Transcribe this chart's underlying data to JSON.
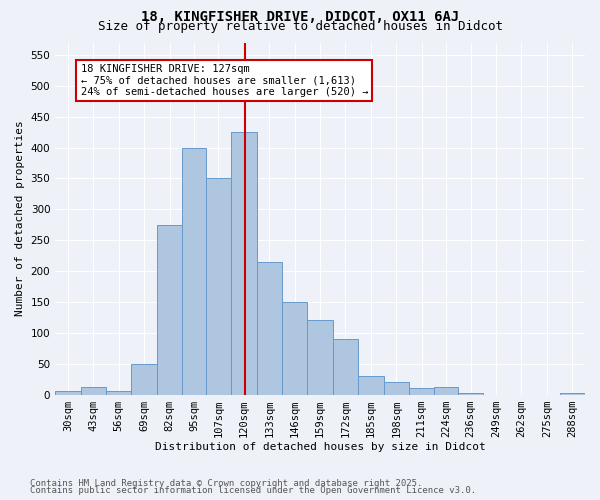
{
  "title1": "18, KINGFISHER DRIVE, DIDCOT, OX11 6AJ",
  "title2": "Size of property relative to detached houses in Didcot",
  "xlabel": "Distribution of detached houses by size in Didcot",
  "ylabel": "Number of detached properties",
  "bin_labels": [
    "30sqm",
    "43sqm",
    "56sqm",
    "69sqm",
    "82sqm",
    "95sqm",
    "107sqm",
    "120sqm",
    "133sqm",
    "146sqm",
    "159sqm",
    "172sqm",
    "185sqm",
    "198sqm",
    "211sqm",
    "224sqm",
    "236sqm",
    "249sqm",
    "262sqm",
    "275sqm",
    "288sqm"
  ],
  "bin_edges": [
    30,
    43,
    56,
    69,
    82,
    95,
    107,
    120,
    133,
    146,
    159,
    172,
    185,
    198,
    211,
    224,
    236,
    249,
    262,
    275,
    288,
    301
  ],
  "bar_heights": [
    5,
    13,
    5,
    50,
    275,
    400,
    350,
    425,
    215,
    150,
    120,
    90,
    30,
    20,
    10,
    13,
    2,
    0,
    0,
    0,
    2
  ],
  "bar_color": "#aec6e0",
  "bar_edgecolor": "#6699cc",
  "vline_x": 127,
  "vline_color": "#cc0000",
  "annotation_text": "18 KINGFISHER DRIVE: 127sqm\n← 75% of detached houses are smaller (1,613)\n24% of semi-detached houses are larger (520) →",
  "annotation_box_edgecolor": "#cc0000",
  "ylim": [
    0,
    570
  ],
  "yticks": [
    0,
    50,
    100,
    150,
    200,
    250,
    300,
    350,
    400,
    450,
    500,
    550
  ],
  "background_color": "#eef2f8",
  "footnote1": "Contains HM Land Registry data © Crown copyright and database right 2025.",
  "footnote2": "Contains public sector information licensed under the Open Government Licence v3.0.",
  "title_fontsize": 10,
  "subtitle_fontsize": 9,
  "axis_label_fontsize": 8,
  "tick_fontsize": 7.5,
  "annot_fontsize": 7.5,
  "footnote_fontsize": 6.5
}
